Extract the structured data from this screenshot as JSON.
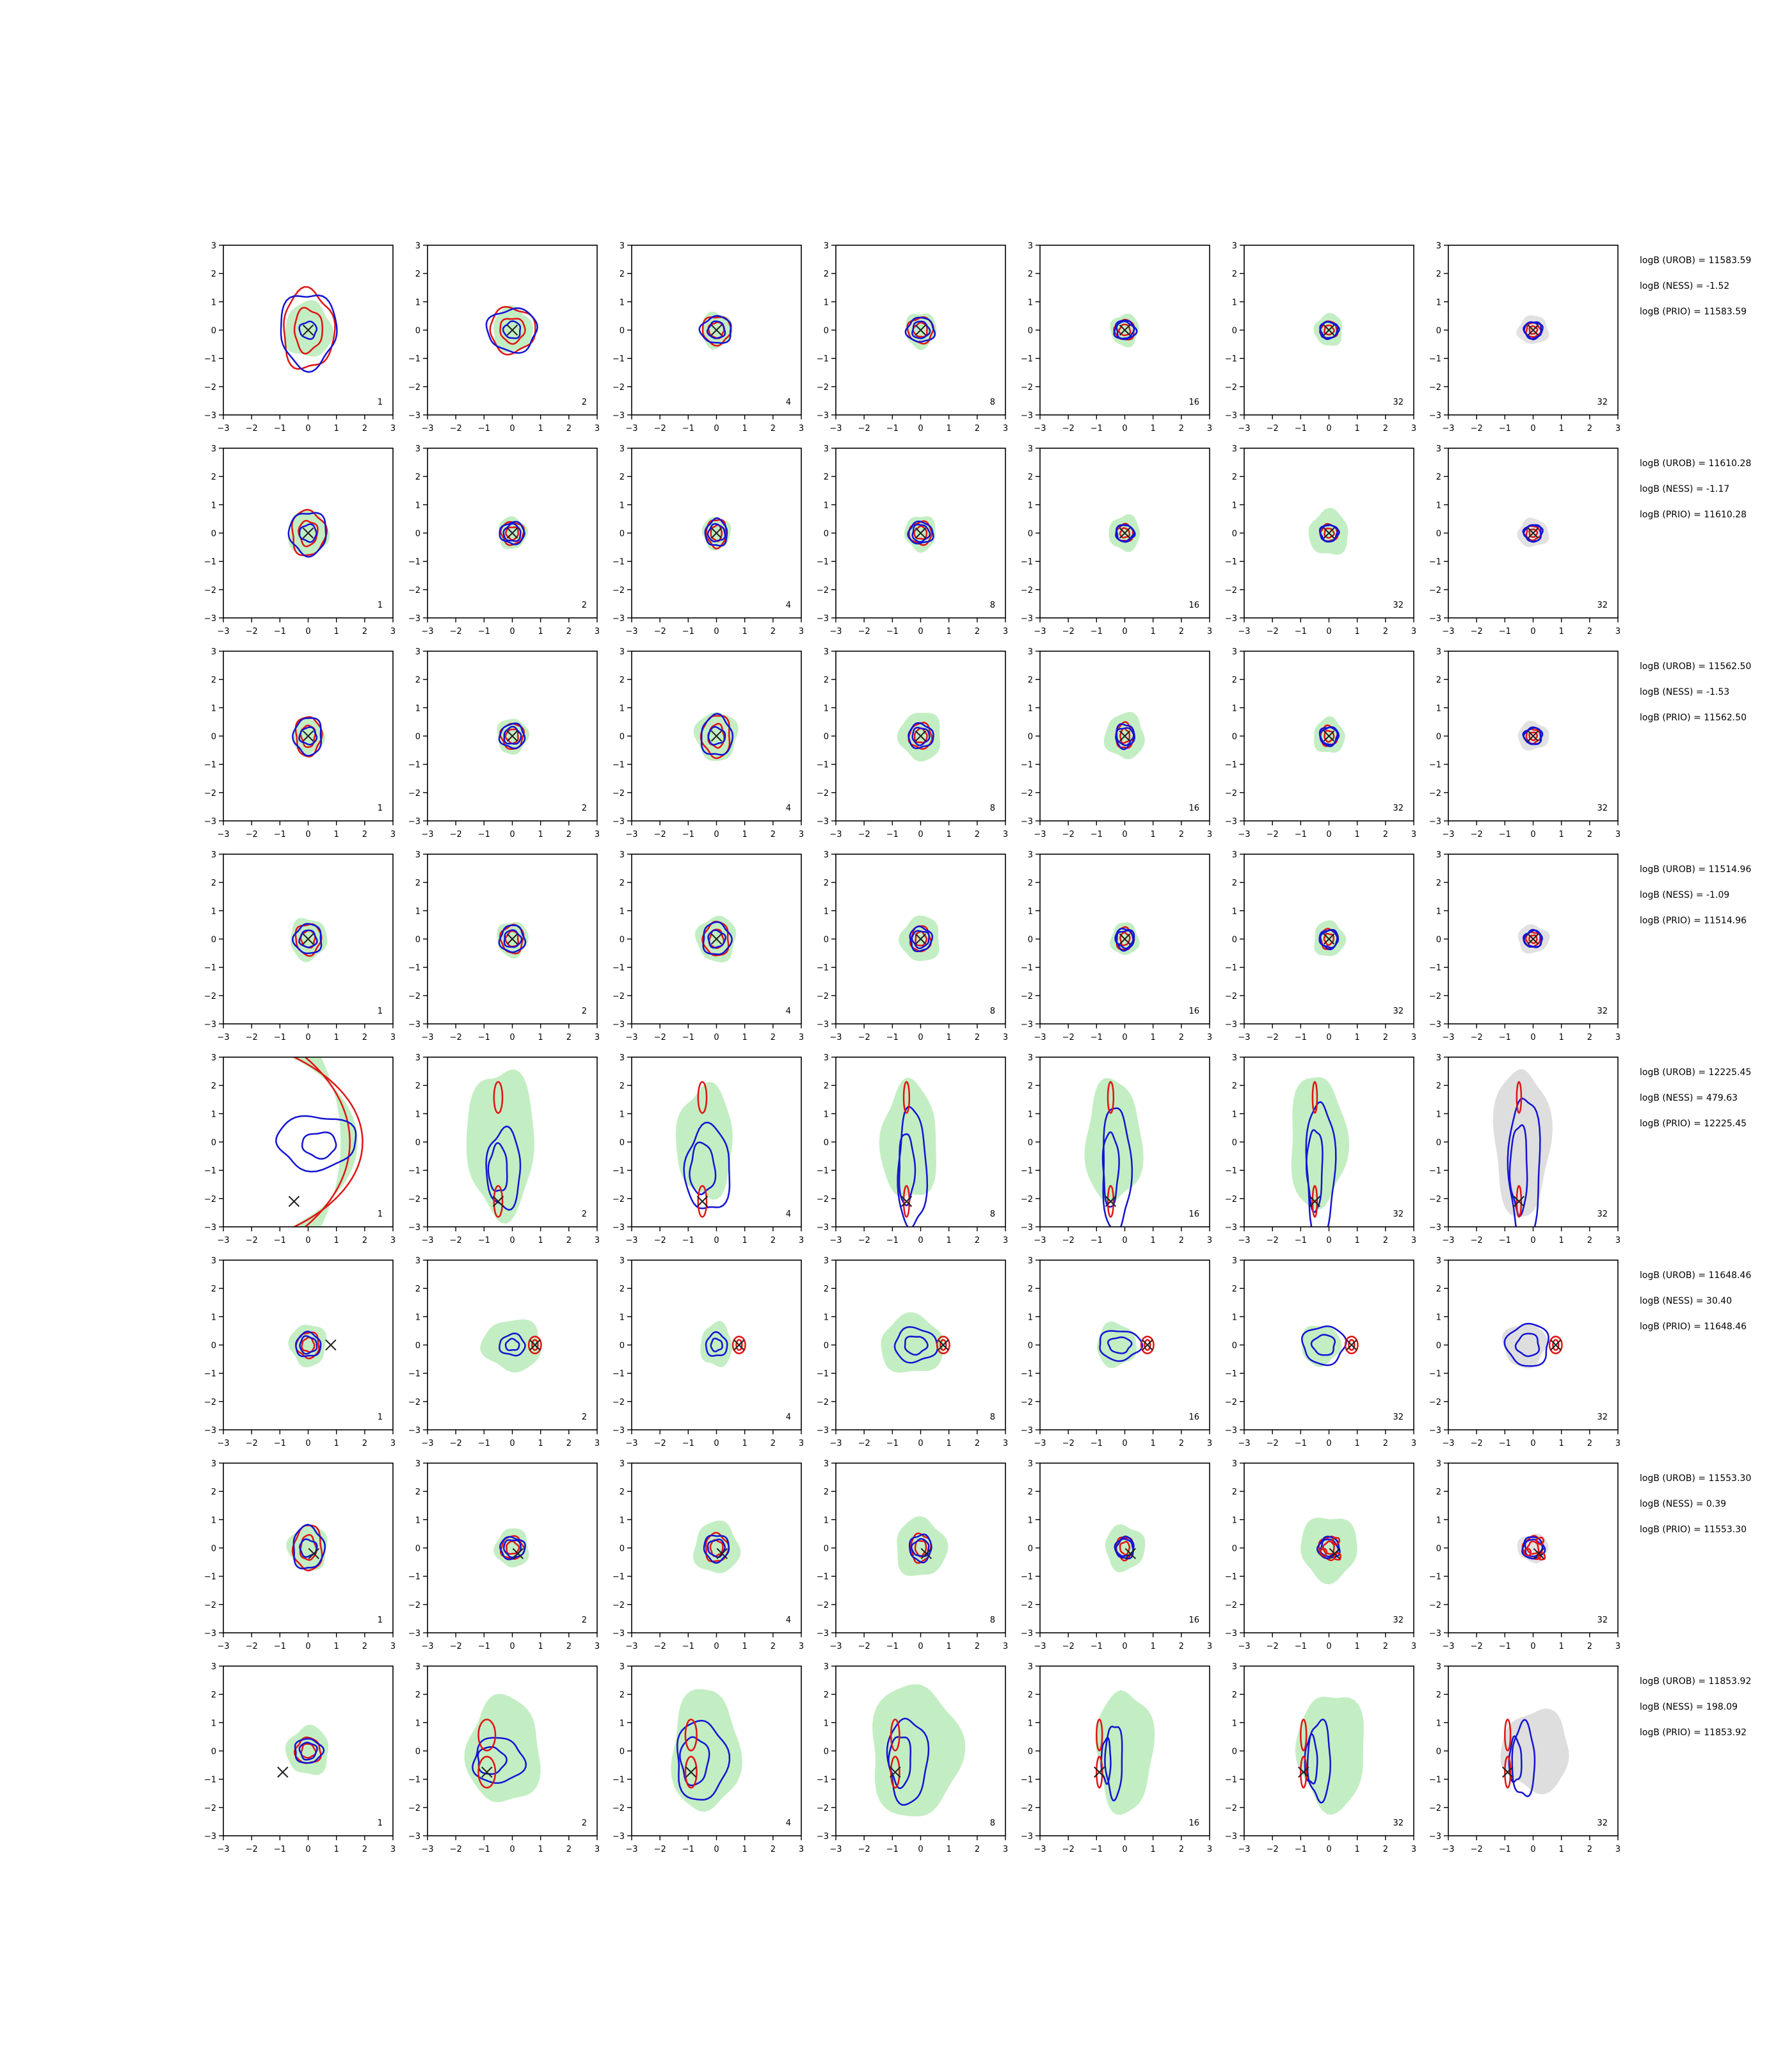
{
  "figure": {
    "axis_ticks": [
      "−3",
      "−2",
      "−1",
      "0",
      "1",
      "2",
      "3"
    ],
    "colors": {
      "pdf": "#9be39b",
      "pdf_alt": "#c8c8c8",
      "prior_contour": "#1414d4",
      "post_contour": "#e01414",
      "marker": "#222222"
    }
  },
  "rows": [
    {
      "stats": [
        "logB (UROB) = 11583.59",
        "logB (NESS) = -1.52",
        "logB (PRIO) = 11583.59"
      ],
      "marker": [
        0,
        0
      ],
      "panels": [
        {
          "label": "1",
          "kind": "ring",
          "s": 0.85,
          "rx": 0.9,
          "ry": 1.4
        },
        {
          "label": "2",
          "kind": "ring",
          "s": 0.7,
          "rx": 0.8,
          "ry": 0.8
        },
        {
          "label": "4",
          "kind": "ring",
          "s": 0.55,
          "rx": 0.5,
          "ry": 0.5
        },
        {
          "label": "8",
          "kind": "ring",
          "s": 0.55,
          "rx": 0.45,
          "ry": 0.45
        },
        {
          "label": "16",
          "kind": "ring",
          "s": 0.5,
          "rx": 0.35,
          "ry": 0.35
        },
        {
          "label": "32",
          "kind": "ring",
          "s": 0.5,
          "rx": 0.3,
          "ry": 0.3
        },
        {
          "label": "32",
          "kind": "ring",
          "s": 0.45,
          "rx": 0.25,
          "ry": 0.25,
          "nofill": true
        }
      ]
    },
    {
      "stats": [
        "logB (UROB) = 11610.28",
        "logB (NESS) = -1.17",
        "logB (PRIO) = 11610.28"
      ],
      "marker": [
        0,
        0
      ],
      "panels": [
        {
          "label": "1",
          "kind": "ring",
          "s": 0.7,
          "rx": 0.6,
          "ry": 0.8
        },
        {
          "label": "2",
          "kind": "ring",
          "s": 0.5,
          "rx": 0.4,
          "ry": 0.4
        },
        {
          "label": "4",
          "kind": "ring",
          "s": 0.5,
          "rx": 0.35,
          "ry": 0.5
        },
        {
          "label": "8",
          "kind": "ring",
          "s": 0.55,
          "rx": 0.4,
          "ry": 0.4
        },
        {
          "label": "16",
          "kind": "ring",
          "s": 0.55,
          "rx": 0.3,
          "ry": 0.3
        },
        {
          "label": "32",
          "kind": "ring",
          "s": 0.7,
          "rx": 0.3,
          "ry": 0.3
        },
        {
          "label": "32",
          "kind": "ring",
          "s": 0.6,
          "rx": 0.25,
          "ry": 0.25,
          "nofill": true
        }
      ]
    },
    {
      "stats": [
        "logB (UROB) = 11562.50",
        "logB (NESS) = -1.53",
        "logB (PRIO) = 11562.50"
      ],
      "marker": [
        0,
        0
      ],
      "panels": [
        {
          "label": "1",
          "kind": "ring",
          "s": 0.55,
          "rx": 0.45,
          "ry": 0.7
        },
        {
          "label": "2",
          "kind": "ring",
          "s": 0.55,
          "rx": 0.4,
          "ry": 0.45
        },
        {
          "label": "4",
          "kind": "ring",
          "s": 0.75,
          "rx": 0.5,
          "ry": 0.75
        },
        {
          "label": "8",
          "kind": "ring",
          "s": 0.75,
          "rx": 0.4,
          "ry": 0.45
        },
        {
          "label": "16",
          "kind": "ring",
          "s": 0.7,
          "rx": 0.3,
          "ry": 0.45
        },
        {
          "label": "32",
          "kind": "ring",
          "s": 0.55,
          "rx": 0.3,
          "ry": 0.35
        },
        {
          "label": "32",
          "kind": "ring",
          "s": 0.6,
          "rx": 0.25,
          "ry": 0.25,
          "nofill": true
        }
      ]
    },
    {
      "stats": [
        "logB (UROB) = 11514.96",
        "logB (NESS) = -1.09",
        "logB (PRIO) = 11514.96"
      ],
      "marker": [
        0,
        0
      ],
      "panels": [
        {
          "label": "1",
          "kind": "ring",
          "s": 0.65,
          "rx": 0.45,
          "ry": 0.55
        },
        {
          "label": "2",
          "kind": "ring",
          "s": 0.55,
          "rx": 0.4,
          "ry": 0.5
        },
        {
          "label": "4",
          "kind": "ring",
          "s": 0.7,
          "rx": 0.45,
          "ry": 0.6
        },
        {
          "label": "8",
          "kind": "ring",
          "s": 0.7,
          "rx": 0.35,
          "ry": 0.45
        },
        {
          "label": "16",
          "kind": "ring",
          "s": 0.5,
          "rx": 0.3,
          "ry": 0.4
        },
        {
          "label": "32",
          "kind": "ring",
          "s": 0.55,
          "rx": 0.3,
          "ry": 0.35
        },
        {
          "label": "32",
          "kind": "ring",
          "s": 0.6,
          "rx": 0.25,
          "ry": 0.25,
          "nofill": true
        }
      ]
    },
    {
      "stats": [
        "logB (UROB) = 12225.45",
        "logB (NESS) = 479.63",
        "logB (PRIO) = 12225.45"
      ],
      "marker": [
        -0.5,
        -2.1
      ],
      "panels": [
        {
          "label": "1",
          "kind": "banana"
        },
        {
          "label": "2",
          "kind": "vert",
          "sw": 1.2,
          "sh": 2.9,
          "bx": 0.6,
          "by": 1.4,
          "rw": 0.15
        },
        {
          "label": "4",
          "kind": "vert",
          "sw": 1.0,
          "sh": 2.2,
          "bx": 0.8,
          "by": 1.5,
          "rw": 0.15
        },
        {
          "label": "8",
          "kind": "vert",
          "sw": 1.0,
          "sh": 2.3,
          "bx": 0.5,
          "by": 2.1,
          "rw": 0.1
        },
        {
          "label": "16",
          "kind": "vert",
          "sw": 1.0,
          "sh": 2.4,
          "bx": 0.5,
          "by": 2.2,
          "rw": 0.1
        },
        {
          "label": "32",
          "kind": "vert",
          "sw": 1.0,
          "sh": 2.6,
          "bx": 0.5,
          "by": 2.4,
          "rw": 0.08
        },
        {
          "label": "32",
          "kind": "vert",
          "sw": 1.0,
          "sh": 2.9,
          "bx": 0.55,
          "by": 2.6,
          "rw": 0.08,
          "gray": true
        }
      ]
    },
    {
      "stats": [
        "logB (UROB) = 11648.46",
        "logB (NESS) = 30.40",
        "logB (PRIO) = 11648.46"
      ],
      "marker": [
        0.8,
        0
      ],
      "panels": [
        {
          "label": "1",
          "kind": "ring",
          "s": 0.65,
          "rx": 0.4,
          "ry": 0.45
        },
        {
          "label": "2",
          "kind": "offring",
          "sw": 1.5,
          "sh": 1.4,
          "bx": 0.6,
          "by": 0.5
        },
        {
          "label": "4",
          "kind": "offring",
          "sw": 0.8,
          "sh": 1.2,
          "bx": 0.5,
          "by": 0.55
        },
        {
          "label": "8",
          "kind": "far",
          "sw": 1.6,
          "sh": 1.6,
          "bx": 1.0,
          "by": 0.8
        },
        {
          "label": "16",
          "kind": "far",
          "sw": 1.0,
          "sh": 1.2,
          "bx": 1.0,
          "by": 0.7
        },
        {
          "label": "32",
          "kind": "far",
          "sw": 1.0,
          "sh": 1.1,
          "bx": 1.0,
          "by": 0.9
        },
        {
          "label": "32",
          "kind": "far",
          "sw": 1.1,
          "sh": 1.2,
          "bx": 1.0,
          "by": 1.0,
          "gray": true
        }
      ]
    },
    {
      "stats": [
        "logB (UROB) = 11553.30",
        "logB (NESS) = 0.39",
        "logB (PRIO) = 11553.30"
      ],
      "marker": [
        0.2,
        -0.2
      ],
      "panels": [
        {
          "label": "1",
          "kind": "ring",
          "s": 0.7,
          "rx": 0.5,
          "ry": 0.8
        },
        {
          "label": "2",
          "kind": "ring",
          "s": 0.6,
          "rx": 0.4,
          "ry": 0.4
        },
        {
          "label": "4",
          "kind": "ring",
          "s": 0.8,
          "rx": 0.4,
          "ry": 0.5
        },
        {
          "label": "8",
          "kind": "ring",
          "s": 0.9,
          "rx": 0.35,
          "ry": 0.5
        },
        {
          "label": "16",
          "kind": "ring",
          "s": 0.7,
          "rx": 0.3,
          "ry": 0.4
        },
        {
          "label": "32",
          "kind": "multi",
          "s": 1.0,
          "rx": 0.35,
          "ry": 0.4
        },
        {
          "label": "32",
          "kind": "multi",
          "s": 0.0,
          "rx": 0.35,
          "ry": 0.4,
          "nofill": true
        }
      ]
    },
    {
      "stats": [
        "logB (UROB) = 11853.92",
        "logB (NESS) = 198.09",
        "logB (PRIO) = 11853.92"
      ],
      "marker": [
        -0.9,
        -0.75
      ],
      "panels": [
        {
          "label": "1",
          "kind": "ring",
          "s": 0.75,
          "rx": 0.45,
          "ry": 0.45
        },
        {
          "label": "2",
          "kind": "vert",
          "sw": 1.3,
          "sh": 2.1,
          "bx": 0.9,
          "by": 0.8,
          "rw": 0.3,
          "dx": 0.5
        },
        {
          "label": "4",
          "kind": "vert",
          "sw": 1.2,
          "sh": 2.4,
          "bx": 0.9,
          "by": 1.4,
          "rw": 0.2,
          "dx": 0.4
        },
        {
          "label": "8",
          "kind": "vert",
          "sw": 1.6,
          "sh": 2.6,
          "bx": 0.7,
          "by": 1.5,
          "rw": 0.15,
          "dx": 0.6
        },
        {
          "label": "16",
          "kind": "vert",
          "sw": 1.0,
          "sh": 2.4,
          "bx": 0.3,
          "by": 1.3,
          "rw": 0.1,
          "dx": 0.8
        },
        {
          "label": "32",
          "kind": "vert",
          "sw": 1.2,
          "sh": 2.3,
          "bx": 0.4,
          "by": 1.4,
          "rw": 0.1,
          "dx": 0.9
        },
        {
          "label": "32",
          "kind": "vert",
          "sw": 1.2,
          "sh": 1.6,
          "bx": 0.4,
          "by": 1.3,
          "rw": 0.1,
          "dx": 0.9,
          "gray": true
        }
      ]
    }
  ]
}
